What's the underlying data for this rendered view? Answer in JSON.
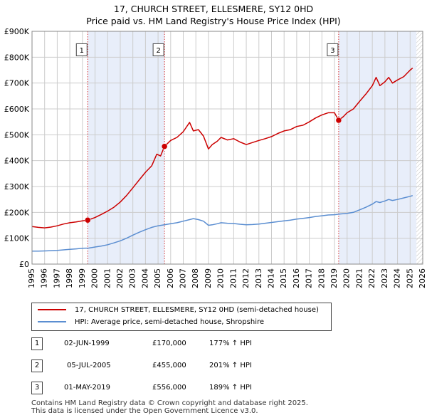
{
  "chart_data": {
    "type": "line",
    "title": "17, CHURCH STREET, ELLESMERE, SY12 0HD",
    "subtitle": "Price paid vs. HM Land Registry's House Price Index (HPI)",
    "xlim": [
      1995,
      2026
    ],
    "ylim": [
      0,
      900000
    ],
    "x_ticks": [
      "1995",
      "1996",
      "1997",
      "1998",
      "1999",
      "2000",
      "2001",
      "2002",
      "2003",
      "2004",
      "2005",
      "2006",
      "2007",
      "2008",
      "2009",
      "2010",
      "2011",
      "2012",
      "2013",
      "2014",
      "2015",
      "2016",
      "2017",
      "2018",
      "2019",
      "2020",
      "2021",
      "2022",
      "2023",
      "2024",
      "2025",
      "2026"
    ],
    "y_ticks": [
      {
        "value": 0,
        "label": "£0"
      },
      {
        "value": 100000,
        "label": "£100K"
      },
      {
        "value": 200000,
        "label": "£200K"
      },
      {
        "value": 300000,
        "label": "£300K"
      },
      {
        "value": 400000,
        "label": "£400K"
      },
      {
        "value": 500000,
        "label": "£500K"
      },
      {
        "value": 600000,
        "label": "£600K"
      },
      {
        "value": 700000,
        "label": "£700K"
      },
      {
        "value": 800000,
        "label": "£800K"
      },
      {
        "value": 900000,
        "label": "£900K"
      }
    ],
    "grid": true,
    "shaded_spans": [
      [
        1999.42,
        2005.51
      ],
      [
        2019.33,
        2025.5
      ]
    ],
    "future_hatch_from": 2025.5,
    "series": [
      {
        "name": "17, CHURCH STREET, ELLESMERE, SY12 0HD (semi-detached house)",
        "color": "#cc0000",
        "x": [
          1995.0,
          1995.5,
          1996.0,
          1996.5,
          1997.0,
          1997.5,
          1998.0,
          1998.5,
          1999.0,
          1999.42,
          2000.0,
          2000.5,
          2001.0,
          2001.5,
          2002.0,
          2002.5,
          2003.0,
          2003.5,
          2004.0,
          2004.5,
          2004.9,
          2005.2,
          2005.51,
          2006.0,
          2006.5,
          2007.0,
          2007.5,
          2007.8,
          2008.2,
          2008.6,
          2009.0,
          2009.3,
          2009.7,
          2010.0,
          2010.5,
          2011.0,
          2011.5,
          2012.0,
          2012.5,
          2013.0,
          2013.5,
          2014.0,
          2014.5,
          2015.0,
          2015.5,
          2016.0,
          2016.5,
          2017.0,
          2017.5,
          2018.0,
          2018.5,
          2019.0,
          2019.33,
          2019.7,
          2020.0,
          2020.5,
          2021.0,
          2021.5,
          2022.0,
          2022.3,
          2022.6,
          2023.0,
          2023.3,
          2023.6,
          2024.0,
          2024.5,
          2025.0,
          2025.2
        ],
        "values": [
          145000,
          142000,
          140000,
          143000,
          148000,
          155000,
          160000,
          163000,
          167000,
          170000,
          180000,
          192000,
          205000,
          220000,
          240000,
          265000,
          295000,
          325000,
          355000,
          380000,
          425000,
          418000,
          455000,
          478000,
          490000,
          512000,
          548000,
          515000,
          520000,
          495000,
          445000,
          462000,
          475000,
          490000,
          480000,
          485000,
          472000,
          462000,
          470000,
          478000,
          485000,
          493000,
          505000,
          515000,
          520000,
          532000,
          537000,
          550000,
          565000,
          577000,
          585000,
          585000,
          556000,
          570000,
          585000,
          600000,
          630000,
          658000,
          690000,
          722000,
          690000,
          705000,
          722000,
          700000,
          712000,
          725000,
          750000,
          758000
        ]
      },
      {
        "name": "HPI: Average price, semi-detached house, Shropshire",
        "color": "#5b8ed1",
        "x": [
          1995.0,
          1995.5,
          1996.0,
          1996.5,
          1997.0,
          1997.5,
          1998.0,
          1998.5,
          1999.0,
          1999.5,
          2000.0,
          2000.5,
          2001.0,
          2001.5,
          2002.0,
          2002.5,
          2003.0,
          2003.5,
          2004.0,
          2004.5,
          2005.0,
          2005.5,
          2006.0,
          2006.5,
          2007.0,
          2007.5,
          2007.8,
          2008.2,
          2008.6,
          2009.0,
          2009.3,
          2009.7,
          2010.0,
          2010.5,
          2011.0,
          2011.5,
          2012.0,
          2012.5,
          2013.0,
          2013.5,
          2014.0,
          2014.5,
          2015.0,
          2015.5,
          2016.0,
          2016.5,
          2017.0,
          2017.5,
          2018.0,
          2018.5,
          2019.0,
          2019.5,
          2020.0,
          2020.5,
          2021.0,
          2021.5,
          2022.0,
          2022.3,
          2022.6,
          2023.0,
          2023.3,
          2023.6,
          2024.0,
          2024.5,
          2025.0,
          2025.2
        ],
        "values": [
          50000,
          50000,
          51000,
          52000,
          53000,
          55000,
          57000,
          59000,
          61000,
          62000,
          66000,
          70000,
          75000,
          82000,
          90000,
          100000,
          112000,
          123000,
          133000,
          142000,
          148000,
          152000,
          156000,
          160000,
          166000,
          172000,
          176000,
          172000,
          166000,
          150000,
          152000,
          156000,
          160000,
          158000,
          157000,
          154000,
          152000,
          153000,
          155000,
          158000,
          161000,
          164000,
          167000,
          170000,
          174000,
          177000,
          180000,
          184000,
          187000,
          190000,
          191000,
          194000,
          196000,
          200000,
          210000,
          220000,
          232000,
          242000,
          238000,
          244000,
          250000,
          246000,
          250000,
          256000,
          262000,
          265000
        ]
      }
    ],
    "markers": [
      {
        "label": "1",
        "x": 1999.42,
        "value": 170000
      },
      {
        "label": "2",
        "x": 2005.51,
        "value": 455000
      },
      {
        "label": "3",
        "x": 2019.33,
        "value": 556000
      }
    ]
  },
  "legend": {
    "property": "17, CHURCH STREET, ELLESMERE, SY12 0HD (semi-detached house)",
    "hpi": "HPI: Average price, semi-detached house, Shropshire"
  },
  "sales": [
    {
      "num": "1",
      "date": "02-JUN-1999",
      "price": "£170,000",
      "hpi": "177% ↑ HPI"
    },
    {
      "num": "2",
      "date": "05-JUL-2005",
      "price": "£455,000",
      "hpi": "201% ↑ HPI"
    },
    {
      "num": "3",
      "date": "01-MAY-2019",
      "price": "£556,000",
      "hpi": "189% ↑ HPI"
    }
  ],
  "footer": {
    "line1": "Contains HM Land Registry data © Crown copyright and database right 2025.",
    "line2": "This data is licensed under the Open Government Licence v3.0."
  },
  "colors": {
    "property_line": "#cc0000",
    "hpi_line": "#5b8ed1",
    "shade": "#e8eefa",
    "grid": "#cccccc",
    "marker_line": "#cc0000"
  }
}
